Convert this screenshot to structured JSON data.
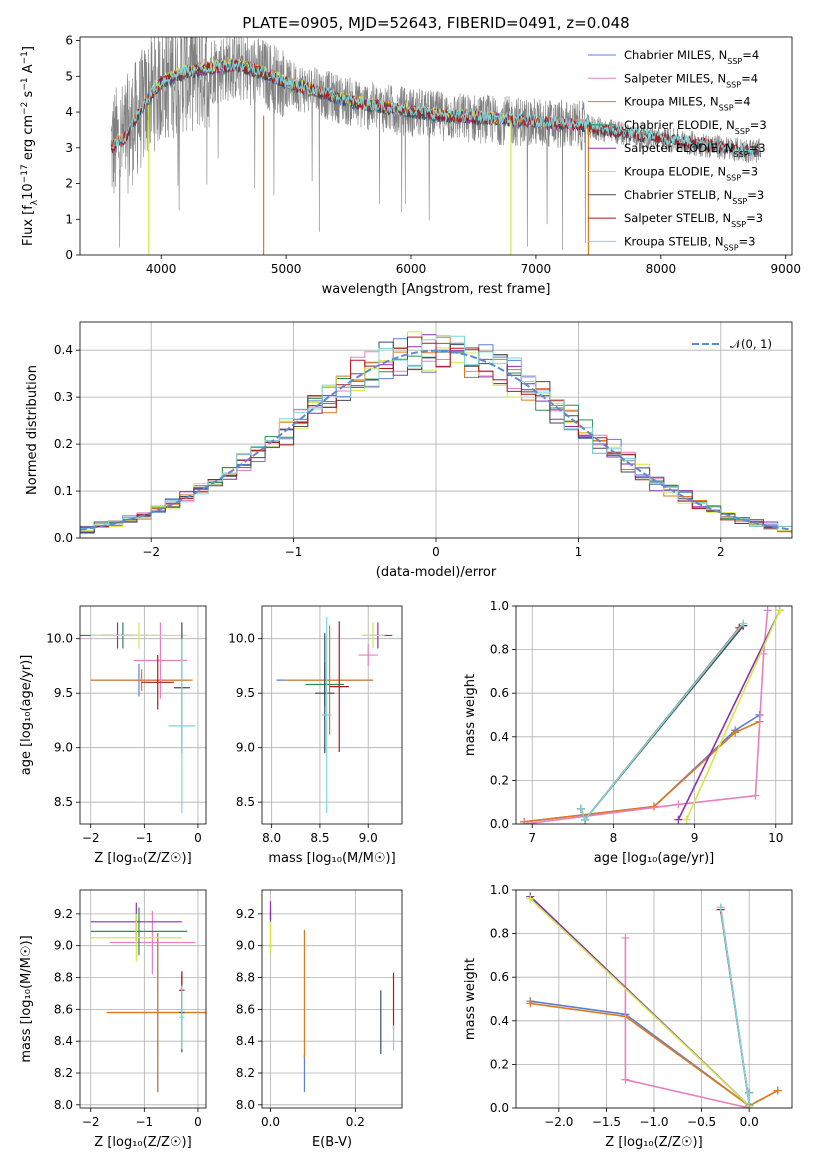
{
  "figure": {
    "title": "PLATE=0905, MJD=52643, FIBERID=0491, z=0.048"
  },
  "colors": {
    "Chabrier MILES": "#5b7fd6",
    "Salpeter MILES": "#e87fbf",
    "Kroupa MILES": "#e07a1f",
    "Chabrier ELODIE": "#2e8b57",
    "Salpeter ELODIE": "#8e2fb0",
    "Kroupa ELODIE": "#d4e84a",
    "Chabrier STELIB": "#404a5a",
    "Salpeter STELIB": "#b01818",
    "Kroupa STELIB": "#7fd6d6",
    "data": "#808080",
    "normal": "#5b8bd6"
  },
  "chart_data": [
    {
      "id": "spectrum",
      "type": "line",
      "title": "PLATE=0905, MJD=52643, FIBERID=0491, z=0.048",
      "xlabel": "wavelength [Angstrom, rest frame]",
      "ylabel_parts": [
        "Flux [f",
        "λ",
        "10",
        "−17",
        " erg cm",
        "−2",
        " s",
        "−1",
        " A",
        "−1",
        "]"
      ],
      "xlim": [
        3350,
        9050
      ],
      "ylim": [
        0,
        6.1
      ],
      "xticks": [
        4000,
        5000,
        6000,
        7000,
        8000,
        9000
      ],
      "yticks": [
        0,
        1,
        2,
        3,
        4,
        5,
        6
      ],
      "legend_position": "upper-right",
      "legend": [
        {
          "name": "Chabrier MILES",
          "nssp": "4"
        },
        {
          "name": "Salpeter MILES",
          "nssp": "4"
        },
        {
          "name": "Kroupa MILES",
          "nssp": "4"
        },
        {
          "name": "Chabrier ELODIE",
          "nssp": "3"
        },
        {
          "name": "Salpeter ELODIE",
          "nssp": "3"
        },
        {
          "name": "Kroupa ELODIE",
          "nssp": "3"
        },
        {
          "name": "Chabrier STELIB",
          "nssp": "3"
        },
        {
          "name": "Salpeter STELIB",
          "nssp": "3"
        },
        {
          "name": "Kroupa STELIB",
          "nssp": "3"
        }
      ],
      "continuum": {
        "x": [
          3600,
          3700,
          3800,
          3900,
          4000,
          4200,
          4400,
          4600,
          4800,
          5000,
          5200,
          5400,
          5600,
          5800,
          6000,
          6200,
          6400,
          6600,
          6800,
          7000,
          7200,
          7400,
          7600,
          7800,
          8000,
          8200,
          8400,
          8600,
          8800
        ],
        "y": [
          3.0,
          3.2,
          3.8,
          4.4,
          4.8,
          5.1,
          5.2,
          5.3,
          5.1,
          4.8,
          4.6,
          4.4,
          4.2,
          4.1,
          4.0,
          3.9,
          3.85,
          3.8,
          3.75,
          3.7,
          3.65,
          3.6,
          3.45,
          3.35,
          3.25,
          3.15,
          3.05,
          2.95,
          2.9
        ]
      }
    },
    {
      "id": "residuals",
      "type": "histogram",
      "xlabel": "(data-model)/error",
      "ylabel": "Normed distribution",
      "xlim": [
        -2.5,
        2.5
      ],
      "ylim": [
        0,
        0.46
      ],
      "xticks": [
        -2,
        -1,
        0,
        1,
        2
      ],
      "yticks": [
        0.0,
        0.1,
        0.2,
        0.3,
        0.4
      ],
      "legend_position": "upper-right",
      "normal_label": "𝒩(0, 1)"
    },
    {
      "id": "z-age",
      "type": "scatter",
      "xlabel": "Z [log₁₀(Z/Z☉)]",
      "ylabel": "age  [log₁₀(age/yr)]",
      "xlim": [
        -2.2,
        0.15
      ],
      "ylim": [
        8.3,
        10.3
      ],
      "xticks": [
        -2,
        -1,
        0
      ],
      "yticks": [
        8.5,
        9.0,
        9.5,
        10.0
      ],
      "points": [
        {
          "s": "Chabrier MILES",
          "x": -1.1,
          "y": 9.62,
          "xe": 0.9,
          "ye": 0.15
        },
        {
          "s": "Kroupa MILES",
          "x": -1.05,
          "y": 9.62,
          "xe": 0.95,
          "ye": 0.1
        },
        {
          "s": "Salpeter MILES",
          "x": -0.7,
          "y": 9.8,
          "xe": 0.5,
          "ye": 0.35
        },
        {
          "s": "Chabrier ELODIE",
          "x": -1.4,
          "y": 10.03,
          "xe": 0.8,
          "ye": 0.12
        },
        {
          "s": "Salpeter ELODIE",
          "x": -1.5,
          "y": 10.03,
          "xe": 0.3,
          "ye": 0.12
        },
        {
          "s": "Kroupa ELODIE",
          "x": -1.1,
          "y": 10.03,
          "xe": 0.9,
          "ye": 0.12
        },
        {
          "s": "Chabrier STELIB",
          "x": -0.3,
          "y": 9.55,
          "xe": 0.15,
          "ye": 0.6
        },
        {
          "s": "Salpeter STELIB",
          "x": -0.75,
          "y": 9.6,
          "xe": 0.3,
          "ye": 0.25
        },
        {
          "s": "Kroupa STELIB",
          "x": -0.3,
          "y": 9.2,
          "xe": 0.25,
          "ye": 0.8
        }
      ]
    },
    {
      "id": "mass-age",
      "type": "scatter",
      "xlabel": "mass [log₁₀(M/M☉)]",
      "ylabel": "",
      "xlim": [
        7.9,
        9.35
      ],
      "ylim": [
        8.3,
        10.3
      ],
      "xticks": [
        8.0,
        8.5,
        9.0
      ],
      "yticks": [
        8.5,
        9.0,
        9.5,
        10.0
      ],
      "points": [
        {
          "s": "Chabrier MILES",
          "x": 8.55,
          "y": 9.62,
          "xe": 0.5,
          "ye": 0.1
        },
        {
          "s": "Kroupa MILES",
          "x": 8.6,
          "y": 9.62,
          "xe": 0.45,
          "ye": 0.5
        },
        {
          "s": "Salpeter MILES",
          "x": 9.0,
          "y": 9.85,
          "xe": 0.1,
          "ye": 0.1
        },
        {
          "s": "Chabrier ELODIE",
          "x": 8.55,
          "y": 9.58,
          "xe": 0.2,
          "ye": 0.2
        },
        {
          "s": "Salpeter ELODIE",
          "x": 9.1,
          "y": 10.03,
          "xe": 0.15,
          "ye": 0.12
        },
        {
          "s": "Kroupa ELODIE",
          "x": 9.05,
          "y": 10.03,
          "xe": 0.12,
          "ye": 0.12
        },
        {
          "s": "Chabrier STELIB",
          "x": 8.55,
          "y": 9.5,
          "xe": 0.1,
          "ye": 0.55
        },
        {
          "s": "Salpeter STELIB",
          "x": 8.7,
          "y": 9.56,
          "xe": 0.1,
          "ye": 0.6
        },
        {
          "s": "Kroupa STELIB",
          "x": 8.57,
          "y": 9.3,
          "xe": 0.05,
          "ye": 0.9
        }
      ]
    },
    {
      "id": "age-weight",
      "type": "line",
      "xlabel": "age  [log₁₀(age/yr)]",
      "ylabel": "mass weight",
      "xlim": [
        6.8,
        10.2
      ],
      "ylim": [
        0,
        1.0
      ],
      "xticks": [
        7,
        8,
        9,
        10
      ],
      "yticks": [
        0.0,
        0.2,
        0.4,
        0.6,
        0.8,
        1.0
      ],
      "series": [
        {
          "s": "Chabrier MILES",
          "x": [
            6.9,
            8.5,
            9.5,
            9.8
          ],
          "y": [
            0.01,
            0.08,
            0.43,
            0.5
          ]
        },
        {
          "s": "Kroupa MILES",
          "x": [
            6.9,
            8.5,
            9.5,
            9.8
          ],
          "y": [
            0.01,
            0.08,
            0.42,
            0.47
          ]
        },
        {
          "s": "Salpeter MILES",
          "x": [
            6.9,
            8.8,
            9.75,
            9.85,
            9.9
          ],
          "y": [
            0.0,
            0.09,
            0.13,
            0.78,
            0.98
          ]
        },
        {
          "s": "Chabrier ELODIE",
          "x": [
            7.65,
            9.6
          ],
          "y": [
            0.02,
            0.91
          ]
        },
        {
          "s": "Salpeter ELODIE",
          "x": [
            8.8,
            10.05
          ],
          "y": [
            0.02,
            0.98
          ]
        },
        {
          "s": "Kroupa ELODIE",
          "x": [
            8.9,
            10.05
          ],
          "y": [
            0.02,
            0.98
          ]
        },
        {
          "s": "Chabrier STELIB",
          "x": [
            7.6,
            7.65,
            9.6
          ],
          "y": [
            0.07,
            0.02,
            0.91
          ]
        },
        {
          "s": "Salpeter STELIB",
          "x": [
            7.6,
            7.65,
            9.55
          ],
          "y": [
            0.07,
            0.02,
            0.9
          ]
        },
        {
          "s": "Kroupa STELIB",
          "x": [
            7.6,
            7.65,
            9.6
          ],
          "y": [
            0.07,
            0.02,
            0.92
          ]
        }
      ]
    },
    {
      "id": "z-mass",
      "type": "scatter",
      "xlabel": "Z [log₁₀(Z/Z☉)]",
      "ylabel": "mass [log₁₀(M/M☉)]",
      "xlim": [
        -2.2,
        0.15
      ],
      "ylim": [
        7.98,
        9.35
      ],
      "xticks": [
        -2,
        -1,
        0
      ],
      "yticks": [
        8.0,
        8.2,
        8.4,
        8.6,
        8.8,
        9.0,
        9.2
      ],
      "points": [
        {
          "s": "Chabrier MILES",
          "x": -0.75,
          "y": 8.58,
          "xe": 0.95,
          "ye": 0.5
        },
        {
          "s": "Kroupa MILES",
          "x": -0.75,
          "y": 8.58,
          "xe": 0.95,
          "ye": 0.5
        },
        {
          "s": "Salpeter MILES",
          "x": -0.85,
          "y": 9.02,
          "xe": 0.8,
          "ye": 0.2
        },
        {
          "s": "Chabrier ELODIE",
          "x": -1.1,
          "y": 9.09,
          "xe": 0.9,
          "ye": 0.15
        },
        {
          "s": "Salpeter ELODIE",
          "x": -1.15,
          "y": 9.15,
          "xe": 0.85,
          "ye": 0.12
        },
        {
          "s": "Kroupa ELODIE",
          "x": -1.15,
          "y": 9.05,
          "xe": 0.85,
          "ye": 0.15
        },
        {
          "s": "Chabrier STELIB",
          "x": -0.3,
          "y": 8.58,
          "xe": 0.05,
          "ye": 0.25
        },
        {
          "s": "Salpeter STELIB",
          "x": -0.3,
          "y": 8.72,
          "xe": 0.05,
          "ye": 0.12
        },
        {
          "s": "Kroupa STELIB",
          "x": -0.3,
          "y": 8.55,
          "xe": 0.05,
          "ye": 0.2
        }
      ]
    },
    {
      "id": "ebv-mass",
      "type": "scatter",
      "xlabel": "E(B-V)",
      "ylabel": "",
      "xlim": [
        -0.02,
        0.31
      ],
      "ylim": [
        7.98,
        9.35
      ],
      "xticks": [
        0.0,
        0.2
      ],
      "yticks": [
        8.0,
        8.2,
        8.4,
        8.6,
        8.8,
        9.0,
        9.2
      ],
      "points": [
        {
          "s": "Chabrier MILES",
          "x": 0.08,
          "y": 8.2,
          "xe": 0,
          "ye": 0.12
        },
        {
          "s": "Kroupa MILES",
          "x": 0.08,
          "y": 8.7,
          "xe": 0,
          "ye": 0.4
        },
        {
          "s": "Salpeter MILES",
          "x": 0.0,
          "y": 9.2,
          "xe": 0,
          "ye": 0.05
        },
        {
          "s": "Chabrier ELODIE",
          "x": 0.0,
          "y": 9.1,
          "xe": 0,
          "ye": 0.12
        },
        {
          "s": "Salpeter ELODIE",
          "x": 0.0,
          "y": 9.22,
          "xe": 0,
          "ye": 0.06
        },
        {
          "s": "Kroupa ELODIE",
          "x": 0.0,
          "y": 9.05,
          "xe": 0,
          "ye": 0.1
        },
        {
          "s": "Chabrier STELIB",
          "x": 0.26,
          "y": 8.52,
          "xe": 0,
          "ye": 0.2
        },
        {
          "s": "Salpeter STELIB",
          "x": 0.29,
          "y": 8.65,
          "xe": 0,
          "ye": 0.18
        },
        {
          "s": "Kroupa STELIB",
          "x": 0.29,
          "y": 8.42,
          "xe": 0,
          "ye": 0.08
        }
      ]
    },
    {
      "id": "z-weight",
      "type": "line",
      "xlabel": "Z [log₁₀(Z/Z☉)]",
      "ylabel": "mass weight",
      "xlim": [
        -2.45,
        0.45
      ],
      "ylim": [
        0,
        1.0
      ],
      "xticks": [
        -2.0,
        -1.5,
        -1.0,
        -0.5,
        0.0
      ],
      "yticks": [
        0.0,
        0.2,
        0.4,
        0.6,
        0.8,
        1.0
      ],
      "series": [
        {
          "s": "Chabrier MILES",
          "x": [
            -2.3,
            -1.3,
            0.0,
            0.3
          ],
          "y": [
            0.49,
            0.43,
            0.01,
            0.08
          ]
        },
        {
          "s": "Kroupa MILES",
          "x": [
            -2.3,
            -1.3,
            0.0,
            0.3
          ],
          "y": [
            0.48,
            0.42,
            0.01,
            0.08
          ]
        },
        {
          "s": "Salpeter MILES",
          "x": [
            -1.3,
            -1.3,
            0.0
          ],
          "y": [
            0.78,
            0.13,
            0.0
          ]
        },
        {
          "s": "Chabrier ELODIE",
          "x": [
            -2.3,
            0.0
          ],
          "y": [
            0.97,
            0.01
          ]
        },
        {
          "s": "Salpeter ELODIE",
          "x": [
            -2.3,
            0.0
          ],
          "y": [
            0.97,
            0.01
          ]
        },
        {
          "s": "Kroupa ELODIE",
          "x": [
            -2.3,
            0.0
          ],
          "y": [
            0.96,
            0.01
          ]
        },
        {
          "s": "Chabrier STELIB",
          "x": [
            -0.3,
            0.0,
            0.0
          ],
          "y": [
            0.92,
            0.02,
            0.07
          ]
        },
        {
          "s": "Salpeter STELIB",
          "x": [
            -0.3,
            0.0,
            0.0
          ],
          "y": [
            0.91,
            0.02,
            0.07
          ]
        },
        {
          "s": "Kroupa STELIB",
          "x": [
            -0.3,
            0.0,
            0.0
          ],
          "y": [
            0.92,
            0.02,
            0.07
          ]
        }
      ]
    }
  ]
}
